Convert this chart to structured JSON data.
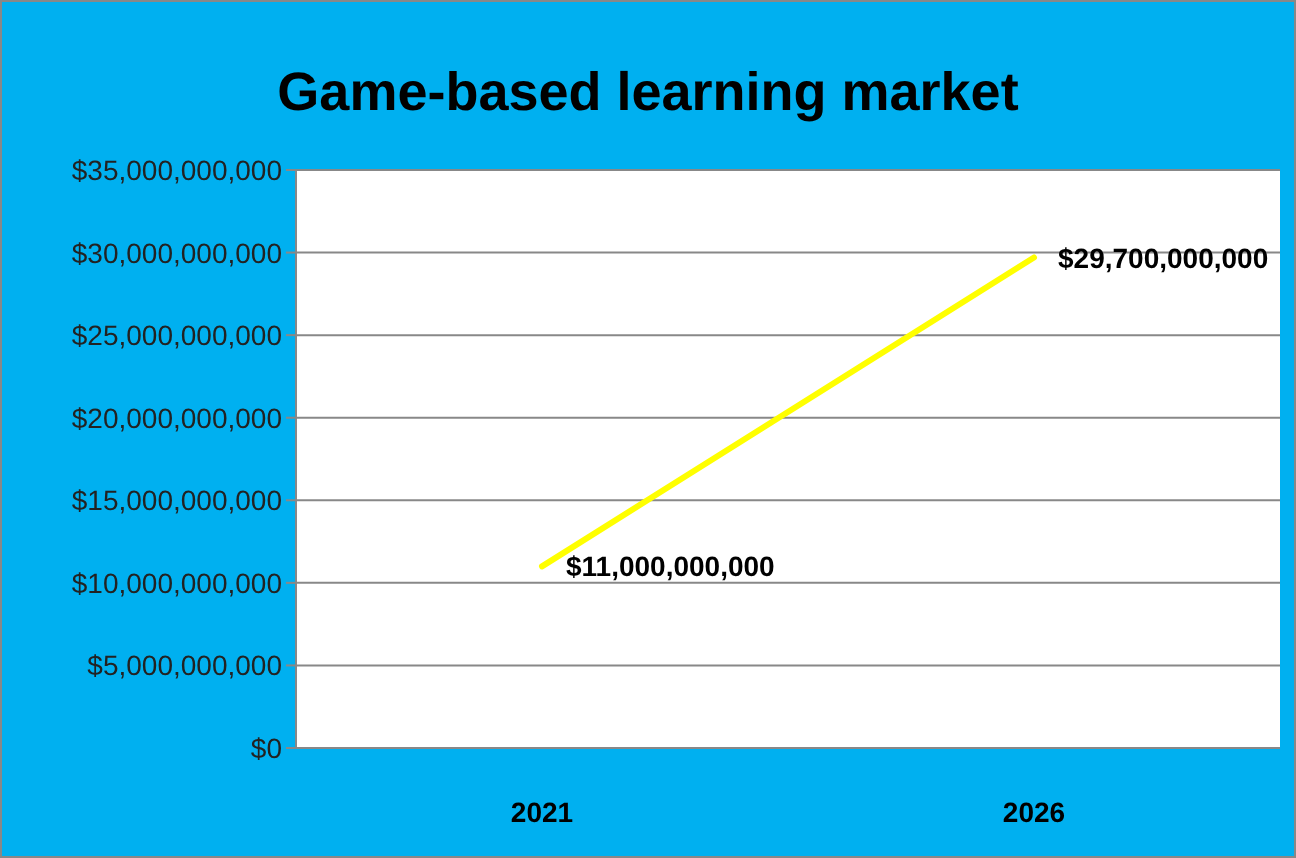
{
  "chart_data": {
    "type": "line",
    "title": "Game-based learning market",
    "categories": [
      "2021",
      "2026"
    ],
    "series": [
      {
        "color": "#ffff00",
        "values": [
          11000000000,
          29700000000
        ],
        "value_labels": [
          "$11,000,000,000",
          "$29,700,000,000"
        ]
      }
    ],
    "ylim": [
      0,
      35000000000
    ],
    "yticks": [
      {
        "value": 0,
        "label": "$0"
      },
      {
        "value": 5000000000,
        "label": "$5,000,000,000"
      },
      {
        "value": 10000000000,
        "label": "$10,000,000,000"
      },
      {
        "value": 15000000000,
        "label": "$15,000,000,000"
      },
      {
        "value": 20000000000,
        "label": "$20,000,000,000"
      },
      {
        "value": 25000000000,
        "label": "$25,000,000,000"
      },
      {
        "value": 30000000000,
        "label": "$30,000,000,000"
      },
      {
        "value": 35000000000,
        "label": "$35,000,000,000"
      }
    ],
    "grid": "y",
    "marker": "none",
    "line_style": "solid"
  }
}
